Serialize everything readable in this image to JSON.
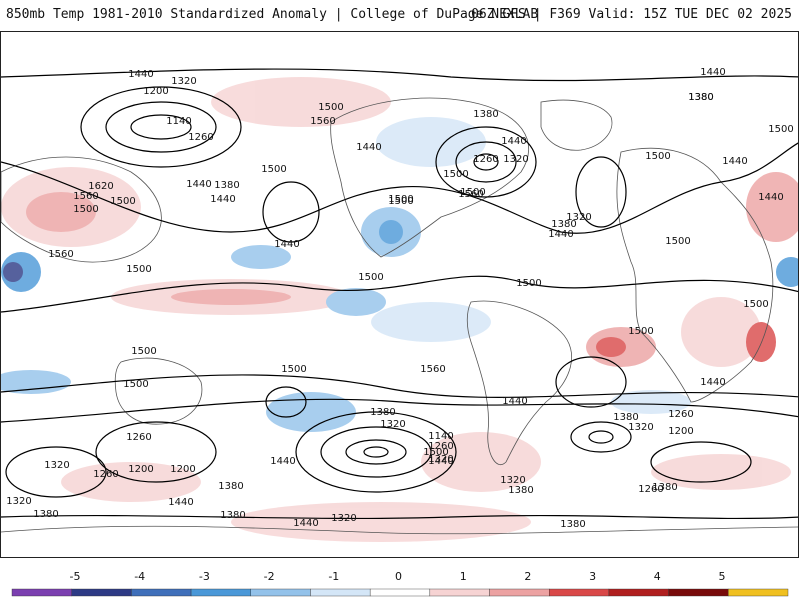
{
  "header": {
    "title_left": "850mb Temp 1981-2010 Standardized Anomaly | College of DuPage NEXLAB",
    "title_right": "06Z GFS | F369 Valid: 15Z TUE DEC 02 2025"
  },
  "map": {
    "contour_labels": [
      "1440",
      "1320",
      "1200",
      "1140",
      "1260",
      "1380",
      "1440",
      "1500",
      "1560",
      "1620",
      "1560",
      "1500",
      "1500",
      "1560",
      "1500",
      "1440",
      "1500",
      "1440",
      "1500",
      "1500",
      "1500",
      "1500",
      "1440",
      "1380",
      "1260",
      "1320",
      "1440",
      "1560",
      "1500",
      "1380",
      "1320",
      "1440",
      "1500",
      "1440",
      "1380",
      "1440",
      "1380",
      "1500",
      "1500",
      "1440",
      "1500",
      "1500",
      "1500",
      "1440",
      "1500",
      "1500",
      "1560",
      "1440",
      "1380",
      "1320",
      "1260",
      "1200",
      "1140",
      "1260",
      "1320",
      "1380",
      "1440",
      "1500",
      "1440",
      "1320",
      "1260",
      "1200",
      "1320",
      "1260",
      "1200",
      "1380",
      "1440",
      "1380",
      "1320",
      "1380",
      "1380",
      "1320",
      "1260",
      "1320",
      "1380",
      "1440",
      "1380",
      "1500"
    ]
  },
  "colorbar": {
    "ticks": [
      "-5",
      "-4",
      "-3",
      "-2",
      "-1",
      "0",
      "1",
      "2",
      "3",
      "4",
      "5"
    ],
    "colors": [
      "#7b3fb0",
      "#2d3a85",
      "#3f6fba",
      "#4a98d8",
      "#93c2ea",
      "#d4e6f7",
      "#ffffff",
      "#f6d3d3",
      "#eca2a2",
      "#d94848",
      "#b01f1f",
      "#780a0a",
      "#f0c020"
    ]
  }
}
